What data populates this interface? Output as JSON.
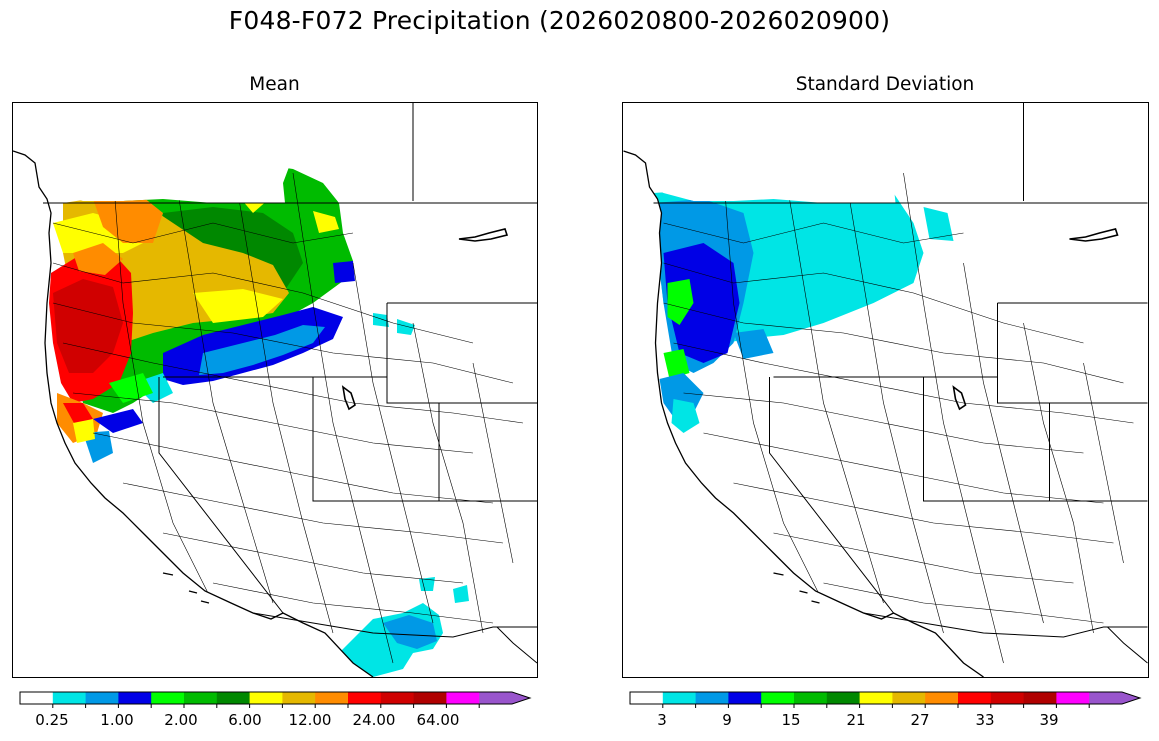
{
  "figure": {
    "title": "F048-F072 Precipitation (2026020800-2026020900)"
  },
  "panels": {
    "mean": {
      "title": "Mean"
    },
    "sd": {
      "title": "Standard Deviation"
    }
  },
  "colors": {
    "levels": [
      "#ffffff",
      "#00e5e5",
      "#0099e6",
      "#0000e6",
      "#00ff00",
      "#00bb00",
      "#008800",
      "#ffff00",
      "#e5b800",
      "#ff8c00",
      "#ff0000",
      "#d00000",
      "#b00000",
      "#ff00ff",
      "#9955cc"
    ]
  },
  "mean_colorbar": {
    "tick_labels": [
      "0.25",
      "1.00",
      "2.00",
      "6.00",
      "12.00",
      "24.00",
      "64.00"
    ]
  },
  "sd_colorbar": {
    "tick_labels": [
      "3",
      "9",
      "15",
      "21",
      "27",
      "33",
      "39"
    ]
  }
}
